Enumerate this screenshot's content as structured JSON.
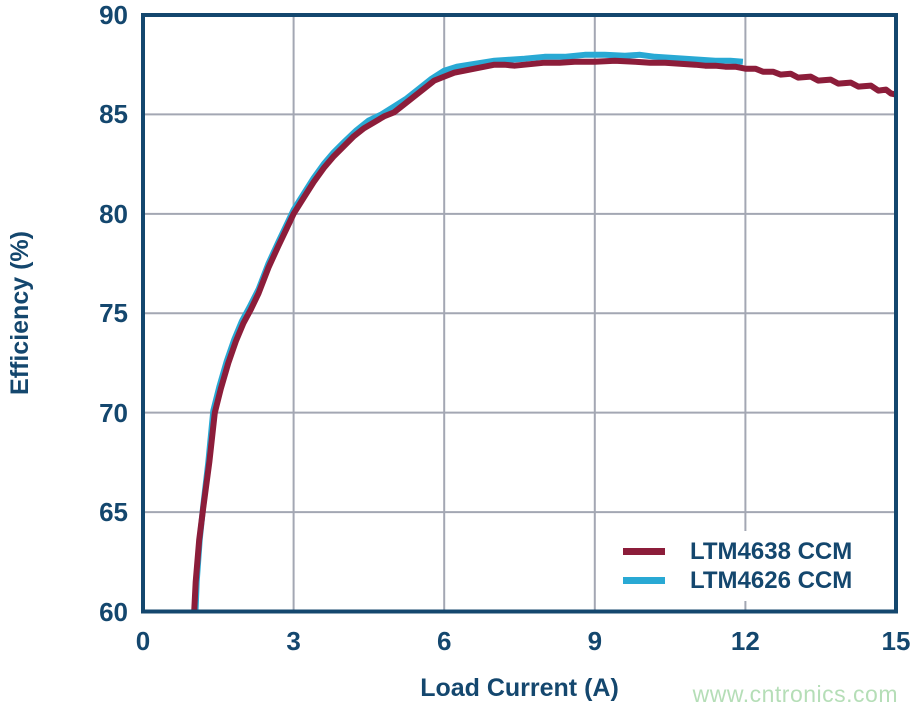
{
  "watermark": "www.cntronics.com",
  "colors": {
    "background": "#ffffff",
    "text_navy": "#14476e",
    "border": "#14476e",
    "grid": "#a3a7b3",
    "watermark_green": "#b5deb7"
  },
  "chart_data": {
    "type": "line",
    "title": "",
    "xlabel": "Load Current (A)",
    "ylabel": "Efficiency (%)",
    "xlim": [
      0,
      15
    ],
    "ylim": [
      60,
      90
    ],
    "xticks": [
      0,
      3,
      6,
      9,
      12,
      15
    ],
    "yticks": [
      60,
      65,
      70,
      75,
      80,
      85,
      90
    ],
    "grid": true,
    "legend_position": "inside-bottom-right",
    "series": [
      {
        "name": "LTM4638 CCM",
        "color": "#8c1d3a",
        "points": [
          [
            1.0,
            59.0
          ],
          [
            1.05,
            61.5
          ],
          [
            1.12,
            63.6
          ],
          [
            1.2,
            65.2
          ],
          [
            1.32,
            67.5
          ],
          [
            1.43,
            70.0
          ],
          [
            1.55,
            71.2
          ],
          [
            1.7,
            72.5
          ],
          [
            1.85,
            73.6
          ],
          [
            2.0,
            74.5
          ],
          [
            2.15,
            75.2
          ],
          [
            2.3,
            76.0
          ],
          [
            2.5,
            77.3
          ],
          [
            2.7,
            78.4
          ],
          [
            2.85,
            79.2
          ],
          [
            3.0,
            80.0
          ],
          [
            3.2,
            80.8
          ],
          [
            3.4,
            81.6
          ],
          [
            3.6,
            82.3
          ],
          [
            3.8,
            82.9
          ],
          [
            4.0,
            83.4
          ],
          [
            4.2,
            83.9
          ],
          [
            4.4,
            84.3
          ],
          [
            4.6,
            84.6
          ],
          [
            4.8,
            84.9
          ],
          [
            5.0,
            85.1
          ],
          [
            5.2,
            85.5
          ],
          [
            5.4,
            85.9
          ],
          [
            5.6,
            86.3
          ],
          [
            5.8,
            86.7
          ],
          [
            6.0,
            86.9
          ],
          [
            6.2,
            87.1
          ],
          [
            6.4,
            87.2
          ],
          [
            6.6,
            87.3
          ],
          [
            6.8,
            87.4
          ],
          [
            7.0,
            87.5
          ],
          [
            7.2,
            87.5
          ],
          [
            7.4,
            87.45
          ],
          [
            7.6,
            87.5
          ],
          [
            7.8,
            87.55
          ],
          [
            8.0,
            87.6
          ],
          [
            8.3,
            87.6
          ],
          [
            8.6,
            87.65
          ],
          [
            9.0,
            87.65
          ],
          [
            9.4,
            87.7
          ],
          [
            9.8,
            87.65
          ],
          [
            10.1,
            87.6
          ],
          [
            10.4,
            87.6
          ],
          [
            10.7,
            87.55
          ],
          [
            11.0,
            87.5
          ],
          [
            11.2,
            87.45
          ],
          [
            11.4,
            87.45
          ],
          [
            11.6,
            87.4
          ],
          [
            11.8,
            87.4
          ],
          [
            12.0,
            87.3
          ],
          [
            12.2,
            87.3
          ],
          [
            12.35,
            87.15
          ],
          [
            12.55,
            87.15
          ],
          [
            12.7,
            87.0
          ],
          [
            12.9,
            87.05
          ],
          [
            13.05,
            86.85
          ],
          [
            13.3,
            86.9
          ],
          [
            13.45,
            86.7
          ],
          [
            13.7,
            86.75
          ],
          [
            13.85,
            86.55
          ],
          [
            14.1,
            86.6
          ],
          [
            14.25,
            86.4
          ],
          [
            14.5,
            86.45
          ],
          [
            14.65,
            86.2
          ],
          [
            14.8,
            86.25
          ],
          [
            14.9,
            86.05
          ],
          [
            15.0,
            86.0
          ]
        ]
      },
      {
        "name": "LTM4626 CCM",
        "color": "#29a9d4",
        "points": [
          [
            1.03,
            59.0
          ],
          [
            1.07,
            61.5
          ],
          [
            1.13,
            63.6
          ],
          [
            1.2,
            65.3
          ],
          [
            1.3,
            67.5
          ],
          [
            1.4,
            70.1
          ],
          [
            1.52,
            71.3
          ],
          [
            1.67,
            72.6
          ],
          [
            1.82,
            73.7
          ],
          [
            1.97,
            74.6
          ],
          [
            2.12,
            75.3
          ],
          [
            2.3,
            76.2
          ],
          [
            2.5,
            77.5
          ],
          [
            2.7,
            78.6
          ],
          [
            2.85,
            79.4
          ],
          [
            3.0,
            80.2
          ],
          [
            3.2,
            81.0
          ],
          [
            3.4,
            81.8
          ],
          [
            3.6,
            82.5
          ],
          [
            3.8,
            83.1
          ],
          [
            4.0,
            83.6
          ],
          [
            4.25,
            84.2
          ],
          [
            4.5,
            84.7
          ],
          [
            4.75,
            85.0
          ],
          [
            5.0,
            85.4
          ],
          [
            5.25,
            85.8
          ],
          [
            5.5,
            86.3
          ],
          [
            5.75,
            86.8
          ],
          [
            6.0,
            87.2
          ],
          [
            6.25,
            87.4
          ],
          [
            6.5,
            87.5
          ],
          [
            6.75,
            87.6
          ],
          [
            7.0,
            87.7
          ],
          [
            7.3,
            87.75
          ],
          [
            7.6,
            87.8
          ],
          [
            8.0,
            87.9
          ],
          [
            8.4,
            87.9
          ],
          [
            8.8,
            88.0
          ],
          [
            9.2,
            88.0
          ],
          [
            9.6,
            87.95
          ],
          [
            9.9,
            88.0
          ],
          [
            10.2,
            87.9
          ],
          [
            10.5,
            87.85
          ],
          [
            10.8,
            87.8
          ],
          [
            11.1,
            87.75
          ],
          [
            11.4,
            87.7
          ],
          [
            11.7,
            87.7
          ],
          [
            11.95,
            87.65
          ]
        ]
      }
    ]
  }
}
